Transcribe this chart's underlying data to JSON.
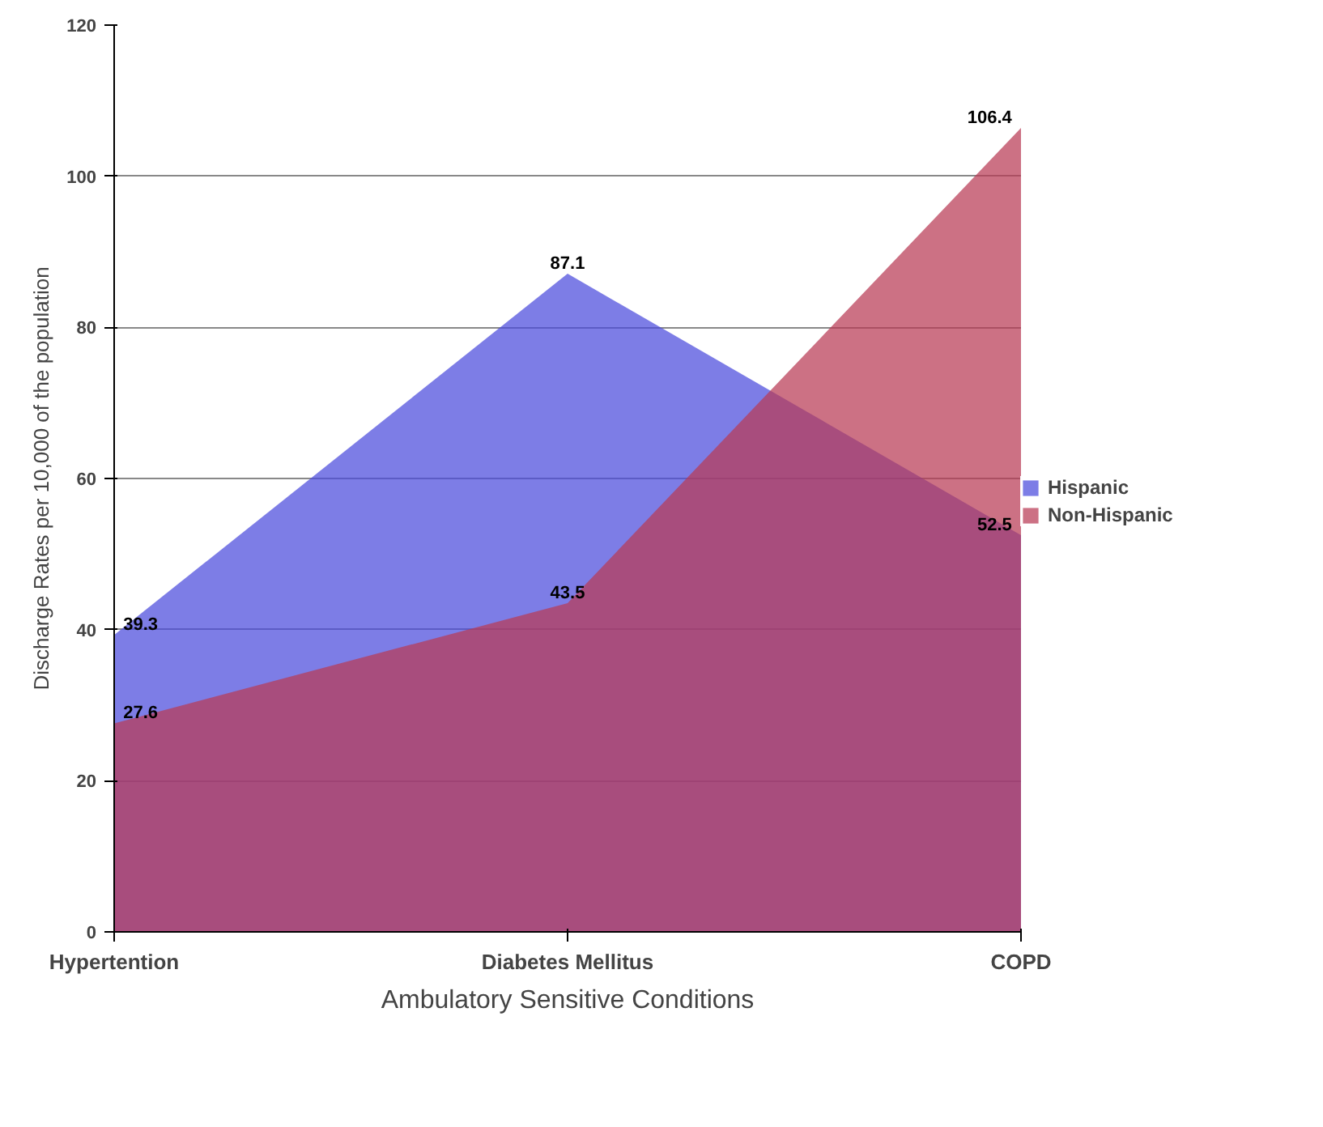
{
  "chart_data": {
    "type": "area",
    "xlabel": "Ambulatory Sensitive Conditions",
    "ylabel": "Discharge Rates per 10,000 of the population",
    "categories": [
      "Hypertention",
      "Diabetes Mellitus",
      "COPD"
    ],
    "series": [
      {
        "name": "Hispanic",
        "color": "#4b4bdc",
        "values": [
          39.3,
          87.1,
          52.5
        ]
      },
      {
        "name": "Non-Hispanic",
        "color": "#b83a55",
        "values": [
          27.6,
          43.5,
          106.4
        ]
      }
    ],
    "ylim": [
      0,
      120
    ],
    "yticks": [
      0,
      20,
      40,
      60,
      80,
      100,
      120
    ],
    "grid": "y",
    "legend": "right",
    "data_labels": true
  }
}
